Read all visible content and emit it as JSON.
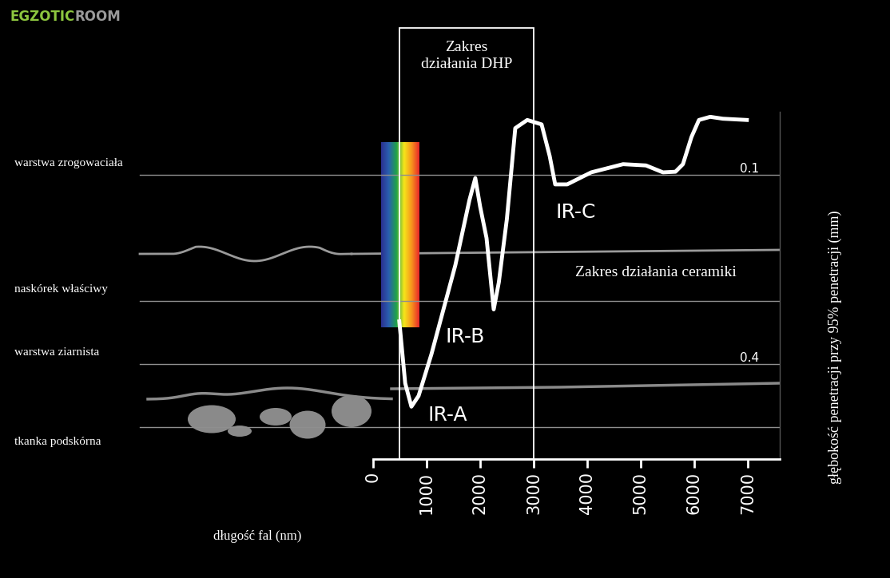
{
  "chart_data": {
    "type": "line",
    "logo": [
      "EGZOTIC",
      "ROOM"
    ],
    "x_label": "długość fal (nm)",
    "y_label": "głębokość penetracji przy 95% penetracji (mm)",
    "x": [
      490,
      600,
      716,
      850,
      1090,
      1537,
      1800,
      1910,
      2000,
      2120,
      2254,
      2350,
      2500,
      2657,
      2881,
      3149,
      3300,
      3403,
      3627,
      4075,
      4672,
      5100,
      5418,
      5650,
      5791,
      5950,
      6090,
      6300,
      6537,
      6985
    ],
    "values": [
      0.332,
      0.43,
      0.467,
      0.45,
      0.384,
      0.243,
      0.14,
      0.105,
      0.15,
      0.2,
      0.313,
      0.27,
      0.17,
      0.026,
      0.013,
      0.02,
      0.07,
      0.115,
      0.115,
      0.096,
      0.083,
      0.085,
      0.096,
      0.095,
      0.083,
      0.04,
      0.013,
      0.008,
      0.011,
      0.013
    ],
    "color": "#ffffff",
    "xlim": [
      0,
      7600
    ],
    "xticks": [
      0,
      1000,
      2000,
      3000,
      4000,
      5000,
      6000,
      7000
    ],
    "ylim": [
      0.55,
      0.0
    ],
    "yticks": [
      0.1,
      0.4
    ],
    "grid": false,
    "layers": [
      {
        "label": "warstwa zrogowaciała",
        "depth": 0.1
      },
      {
        "label": "naskórek właściwy",
        "depth": 0.3
      },
      {
        "label": "warstwa ziarnista",
        "depth": 0.4
      },
      {
        "label": "tkanka podskórna",
        "depth": 0.5
      }
    ],
    "ranges": [
      {
        "label": "Zakres\ndziałania DHP",
        "x": [
          500,
          3000
        ]
      }
    ],
    "annotations": [
      "Zakres działania ceramiki",
      "IR-A",
      "IR-B",
      "IR-C"
    ]
  }
}
